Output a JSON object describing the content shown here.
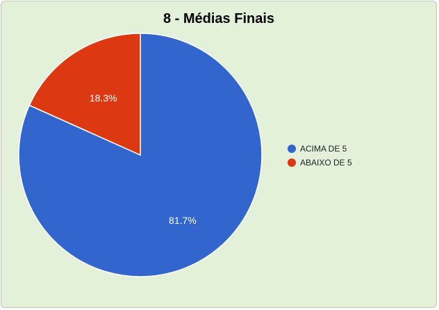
{
  "chart_data": {
    "type": "pie",
    "title": "8 - Médias Finais",
    "slices": [
      {
        "label": "ACIMA DE 5",
        "value": 81.7,
        "display": "81.7%",
        "color": "#3366cc"
      },
      {
        "label": "ABAIXO DE 5",
        "value": 18.3,
        "display": "18.3%",
        "color": "#dc3912"
      }
    ],
    "legend_position": "right"
  }
}
